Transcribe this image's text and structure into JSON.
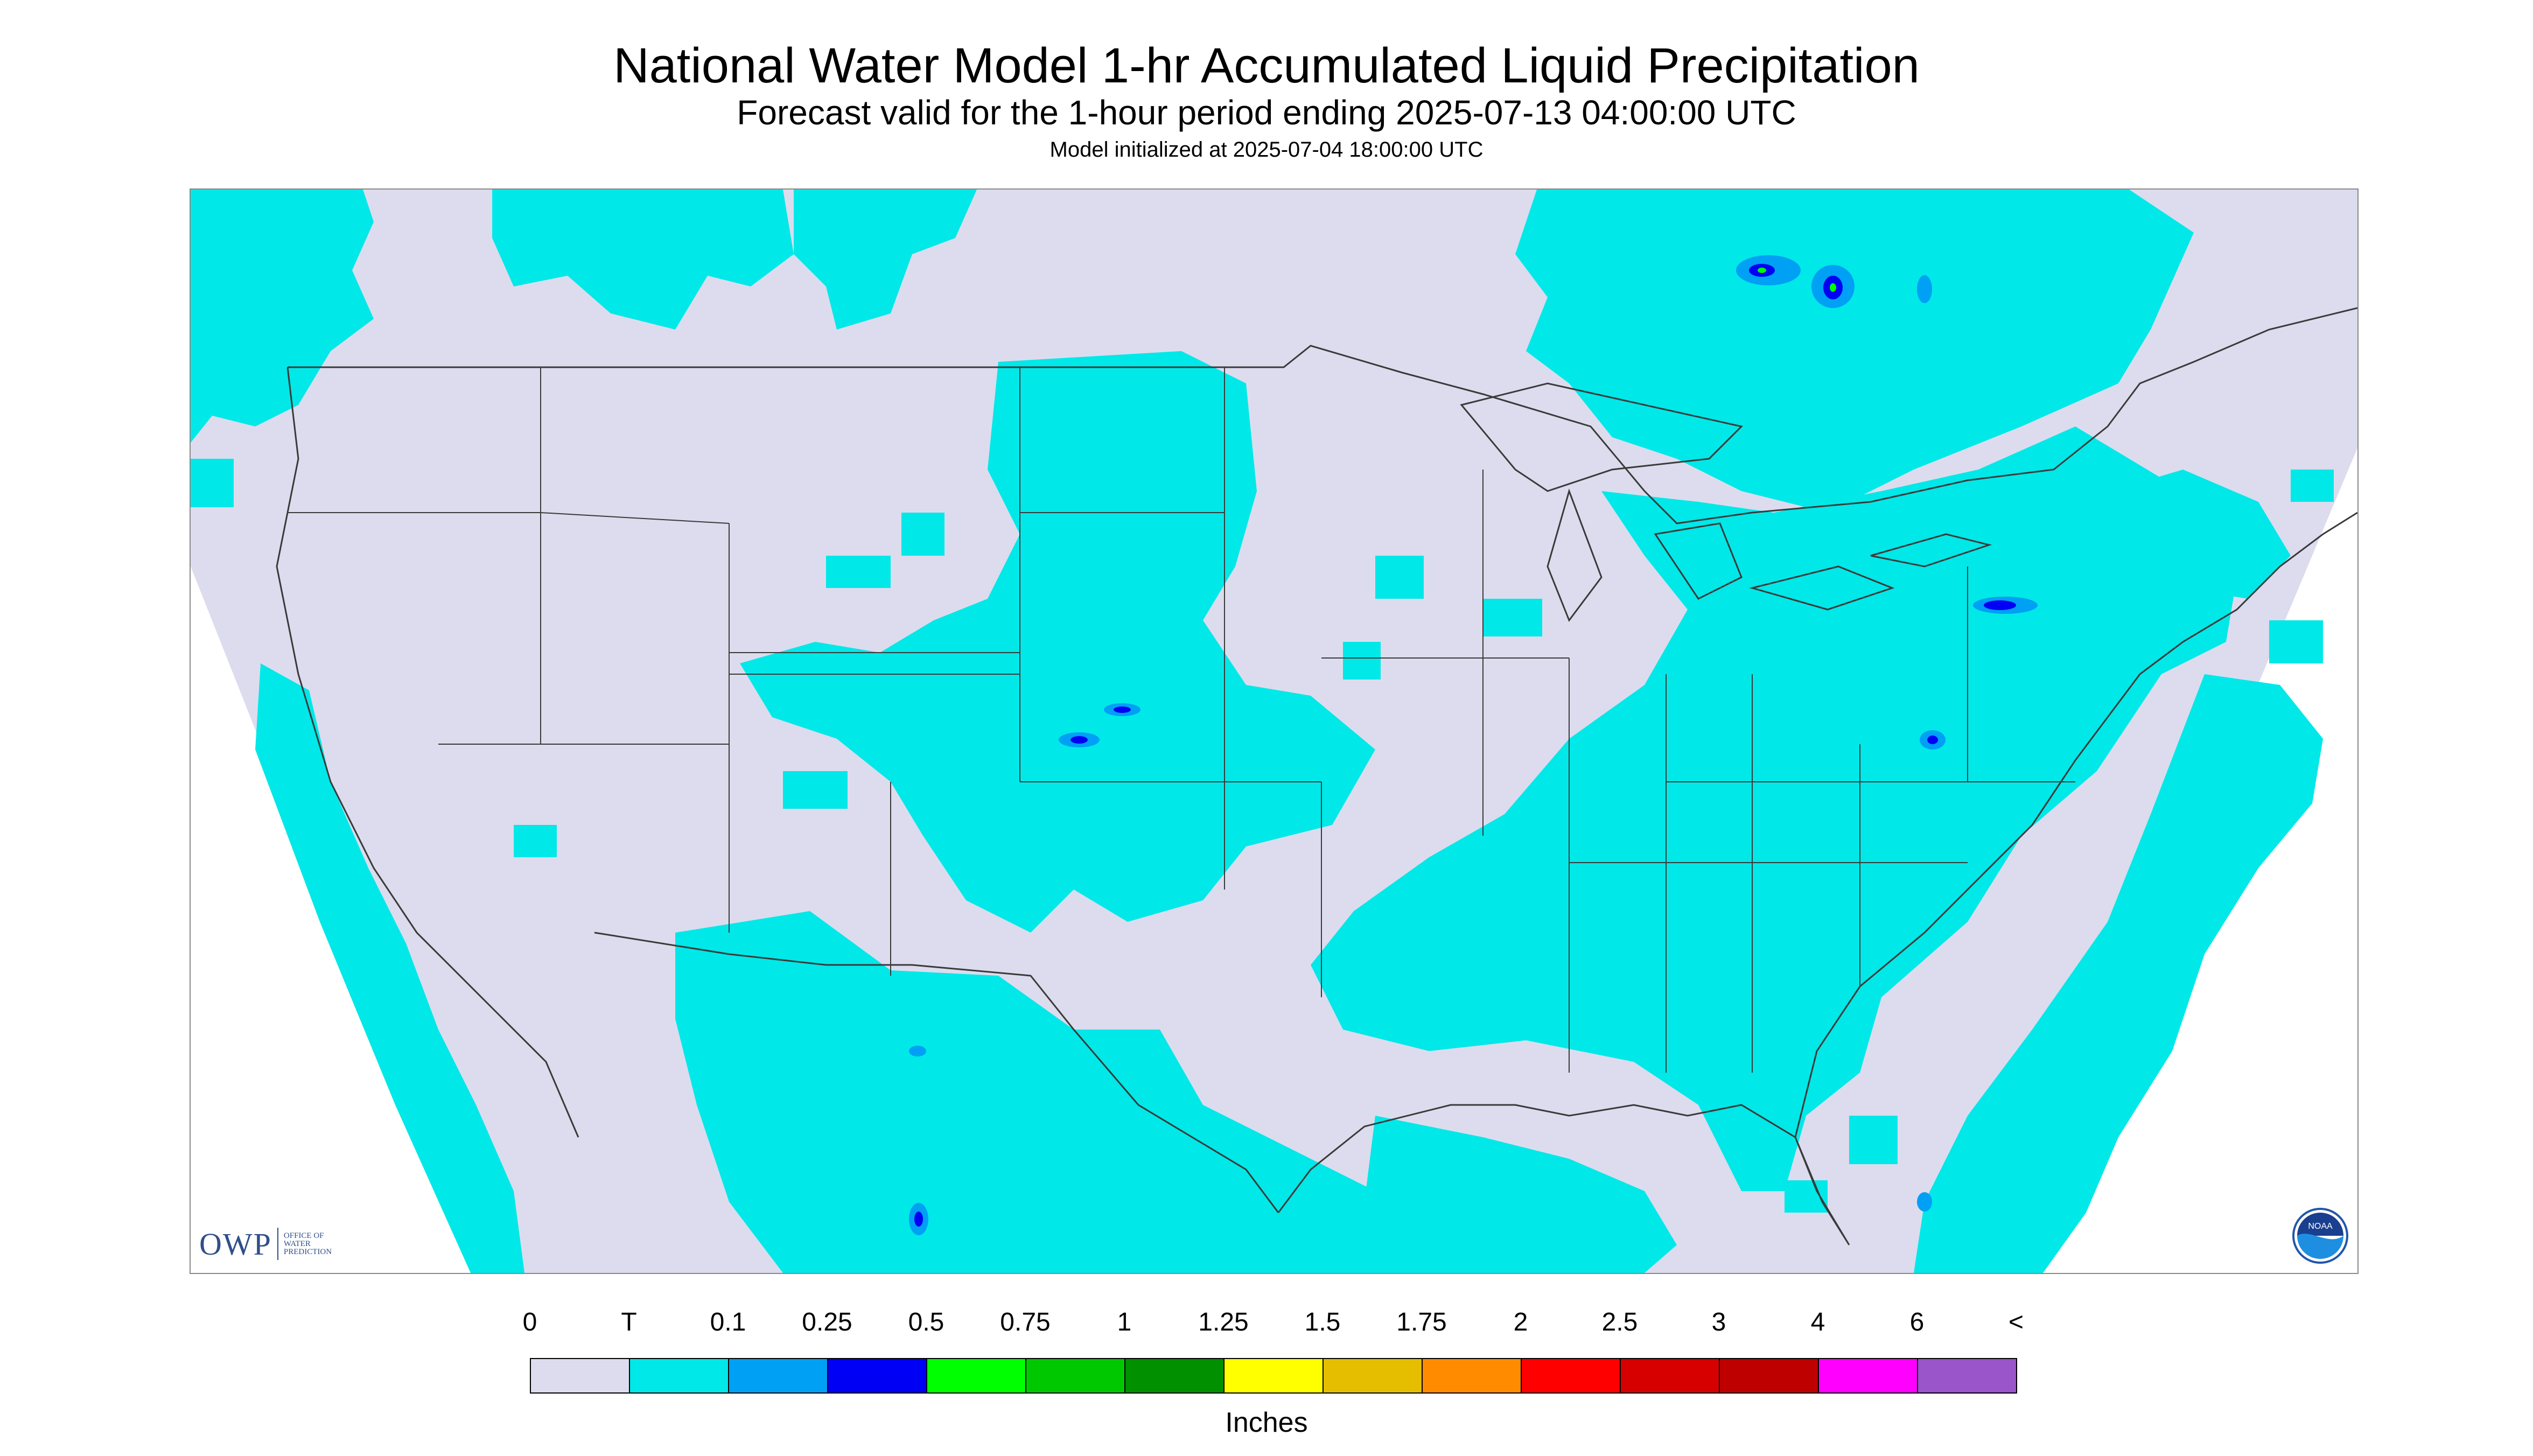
{
  "header": {
    "title": "National Water Model 1-hr Accumulated Liquid Precipitation",
    "subtitle": "Forecast valid for the 1-hour period ending 2025-07-13 04:00:00 UTC",
    "init": "Model initialized at 2025-07-04 18:00:00 UTC"
  },
  "logos": {
    "owp_letters": "OWP",
    "owp_text": [
      "OFFICE OF",
      "WATER",
      "PREDICTION"
    ],
    "noaa_text": "NOAA"
  },
  "legend": {
    "ticks": [
      "0",
      "T",
      "0.1",
      "0.25",
      "0.5",
      "0.75",
      "1",
      "1.25",
      "1.5",
      "1.75",
      "2",
      "2.5",
      "3",
      "4",
      "6",
      "<"
    ],
    "colors": [
      "#dcdcee",
      "#00e8e8",
      "#00a0f5",
      "#0000f5",
      "#00ff00",
      "#00c800",
      "#009000",
      "#ffff00",
      "#e6be00",
      "#ff8c00",
      "#ff0000",
      "#d70000",
      "#be0000",
      "#ff00ff",
      "#9955c9"
    ],
    "units": "Inches"
  },
  "map_colors": {
    "zero": "#dcdcee",
    "trace": "#00e8e8",
    "light": "#00a0f5",
    "moderate": "#0000f5",
    "heavy": "#00ff00",
    "outside": "#ffffff",
    "borders": "#3a3a3a"
  }
}
